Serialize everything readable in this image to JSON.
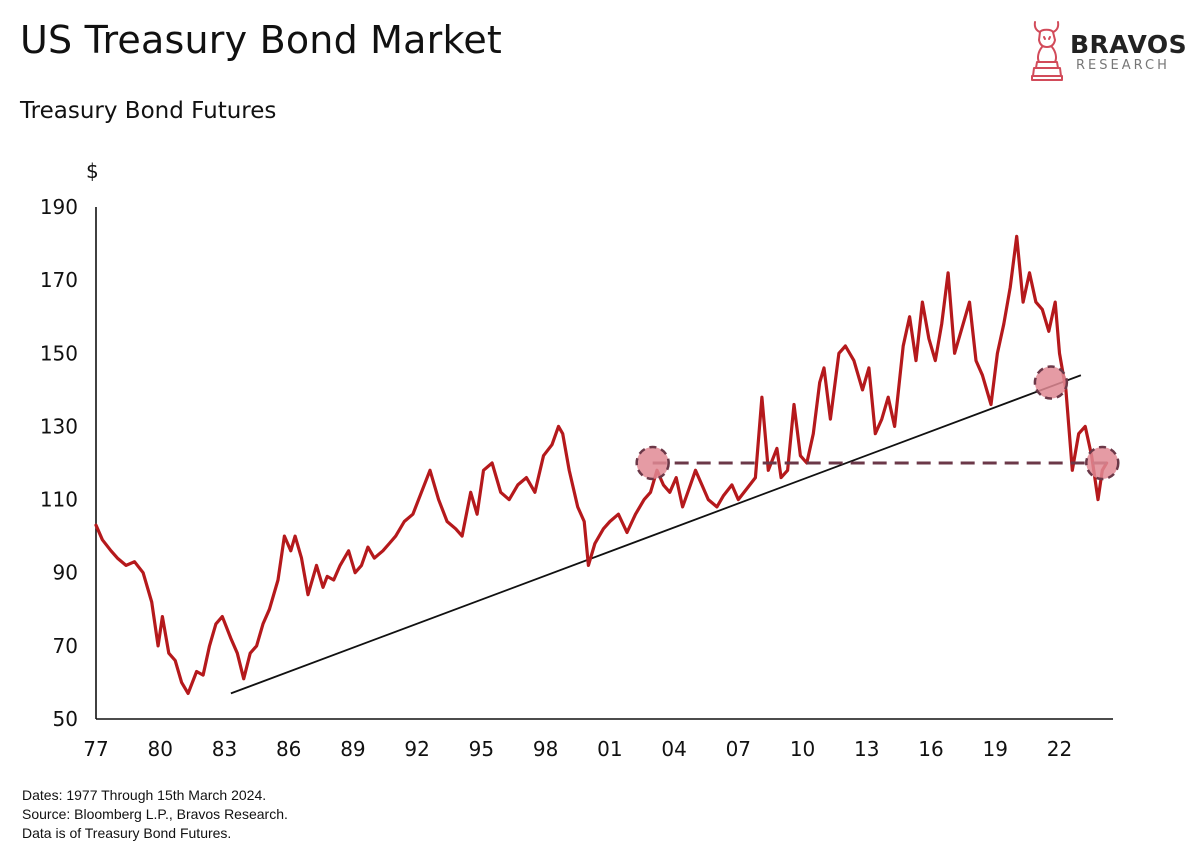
{
  "header": {
    "title": "US Treasury Bond Market",
    "subtitle": "Treasury Bond Futures"
  },
  "brand": {
    "name": "BRAVOS",
    "tagline": "RESEARCH",
    "accent_color": "#d24b5a"
  },
  "notes": [
    "Dates: 1977 Through 15th March 2024.",
    "Source: Bloomberg L.P., Bravos Research.",
    "Data is of Treasury Bond Futures."
  ],
  "colors": {
    "series": "#b5191c",
    "trendline": "#111111",
    "support": "#6b3848",
    "marker_fill": "#e08a94",
    "marker_stroke": "#6b3848"
  },
  "chart_data": {
    "type": "line",
    "title": "Treasury Bond Futures",
    "ylabel": "$",
    "xlabel": "",
    "xlim": [
      1977,
      2024.5
    ],
    "ylim": [
      50,
      190
    ],
    "y_ticks": [
      50,
      70,
      90,
      110,
      130,
      150,
      170,
      190
    ],
    "x_ticks": [
      {
        "value": 1977,
        "label": "77"
      },
      {
        "value": 1980,
        "label": "80"
      },
      {
        "value": 1983,
        "label": "83"
      },
      {
        "value": 1986,
        "label": "86"
      },
      {
        "value": 1989,
        "label": "89"
      },
      {
        "value": 1992,
        "label": "92"
      },
      {
        "value": 1995,
        "label": "95"
      },
      {
        "value": 1998,
        "label": "98"
      },
      {
        "value": 2001,
        "label": "01"
      },
      {
        "value": 2004,
        "label": "04"
      },
      {
        "value": 2007,
        "label": "07"
      },
      {
        "value": 2010,
        "label": "10"
      },
      {
        "value": 2013,
        "label": "13"
      },
      {
        "value": 2016,
        "label": "16"
      },
      {
        "value": 2019,
        "label": "19"
      },
      {
        "value": 2022,
        "label": "22"
      }
    ],
    "series": [
      {
        "name": "Treasury Bond Futures",
        "x": [
          1977.0,
          1977.3,
          1977.7,
          1978.0,
          1978.4,
          1978.8,
          1979.2,
          1979.6,
          1979.9,
          1980.1,
          1980.4,
          1980.7,
          1981.0,
          1981.3,
          1981.7,
          1982.0,
          1982.3,
          1982.6,
          1982.9,
          1983.3,
          1983.6,
          1983.9,
          1984.2,
          1984.5,
          1984.8,
          1985.1,
          1985.5,
          1985.8,
          1986.1,
          1986.3,
          1986.6,
          1986.9,
          1987.3,
          1987.6,
          1987.8,
          1988.1,
          1988.4,
          1988.8,
          1989.1,
          1989.4,
          1989.7,
          1990.0,
          1990.4,
          1990.7,
          1991.0,
          1991.4,
          1991.8,
          1992.2,
          1992.6,
          1993.0,
          1993.4,
          1993.8,
          1994.1,
          1994.5,
          1994.8,
          1995.1,
          1995.5,
          1995.9,
          1996.3,
          1996.7,
          1997.1,
          1997.5,
          1997.9,
          1998.3,
          1998.6,
          1998.8,
          1999.1,
          1999.5,
          1999.8,
          2000.0,
          2000.3,
          2000.7,
          2001.0,
          2001.4,
          2001.8,
          2002.2,
          2002.6,
          2002.9,
          2003.2,
          2003.5,
          2003.8,
          2004.1,
          2004.4,
          2004.7,
          2005.0,
          2005.3,
          2005.6,
          2006.0,
          2006.3,
          2006.7,
          2007.0,
          2007.4,
          2007.8,
          2008.1,
          2008.4,
          2008.8,
          2009.0,
          2009.3,
          2009.6,
          2009.9,
          2010.2,
          2010.5,
          2010.8,
          2011.0,
          2011.3,
          2011.7,
          2012.0,
          2012.4,
          2012.8,
          2013.1,
          2013.4,
          2013.7,
          2014.0,
          2014.3,
          2014.7,
          2015.0,
          2015.3,
          2015.6,
          2015.9,
          2016.2,
          2016.5,
          2016.8,
          2017.1,
          2017.4,
          2017.8,
          2018.1,
          2018.4,
          2018.8,
          2019.1,
          2019.4,
          2019.7,
          2020.0,
          2020.3,
          2020.6,
          2020.9,
          2021.2,
          2021.5,
          2021.8,
          2022.0,
          2022.3,
          2022.6,
          2022.9,
          2023.2,
          2023.5,
          2023.8,
          2024.0,
          2024.2
        ],
        "values": [
          103,
          99,
          96,
          94,
          92,
          93,
          90,
          82,
          70,
          78,
          68,
          66,
          60,
          57,
          63,
          62,
          70,
          76,
          78,
          72,
          68,
          61,
          68,
          70,
          76,
          80,
          88,
          100,
          96,
          100,
          94,
          84,
          92,
          86,
          89,
          88,
          92,
          96,
          90,
          92,
          97,
          94,
          96,
          98,
          100,
          104,
          106,
          112,
          118,
          110,
          104,
          102,
          100,
          112,
          106,
          118,
          120,
          112,
          110,
          114,
          116,
          112,
          122,
          125,
          130,
          128,
          118,
          108,
          104,
          92,
          98,
          102,
          104,
          106,
          101,
          106,
          110,
          112,
          118,
          114,
          112,
          116,
          108,
          113,
          118,
          114,
          110,
          108,
          111,
          114,
          110,
          113,
          116,
          138,
          118,
          124,
          116,
          118,
          136,
          122,
          120,
          128,
          142,
          146,
          132,
          150,
          152,
          148,
          140,
          146,
          128,
          132,
          138,
          130,
          152,
          160,
          148,
          164,
          154,
          148,
          158,
          172,
          150,
          156,
          164,
          148,
          144,
          136,
          150,
          158,
          168,
          182,
          164,
          172,
          164,
          162,
          156,
          164,
          150,
          140,
          118,
          128,
          130,
          122,
          110,
          118,
          120
        ]
      }
    ],
    "annotations": [
      {
        "type": "trendline",
        "x": [
          1983.3,
          2023.0
        ],
        "y": [
          57,
          144
        ]
      },
      {
        "type": "support_line",
        "x": [
          2003.0,
          2024.2
        ],
        "y": [
          120,
          120
        ]
      },
      {
        "type": "marker",
        "x": 2003.0,
        "y": 120
      },
      {
        "type": "marker",
        "x": 2021.6,
        "y": 142
      },
      {
        "type": "marker",
        "x": 2024.0,
        "y": 120
      }
    ]
  }
}
